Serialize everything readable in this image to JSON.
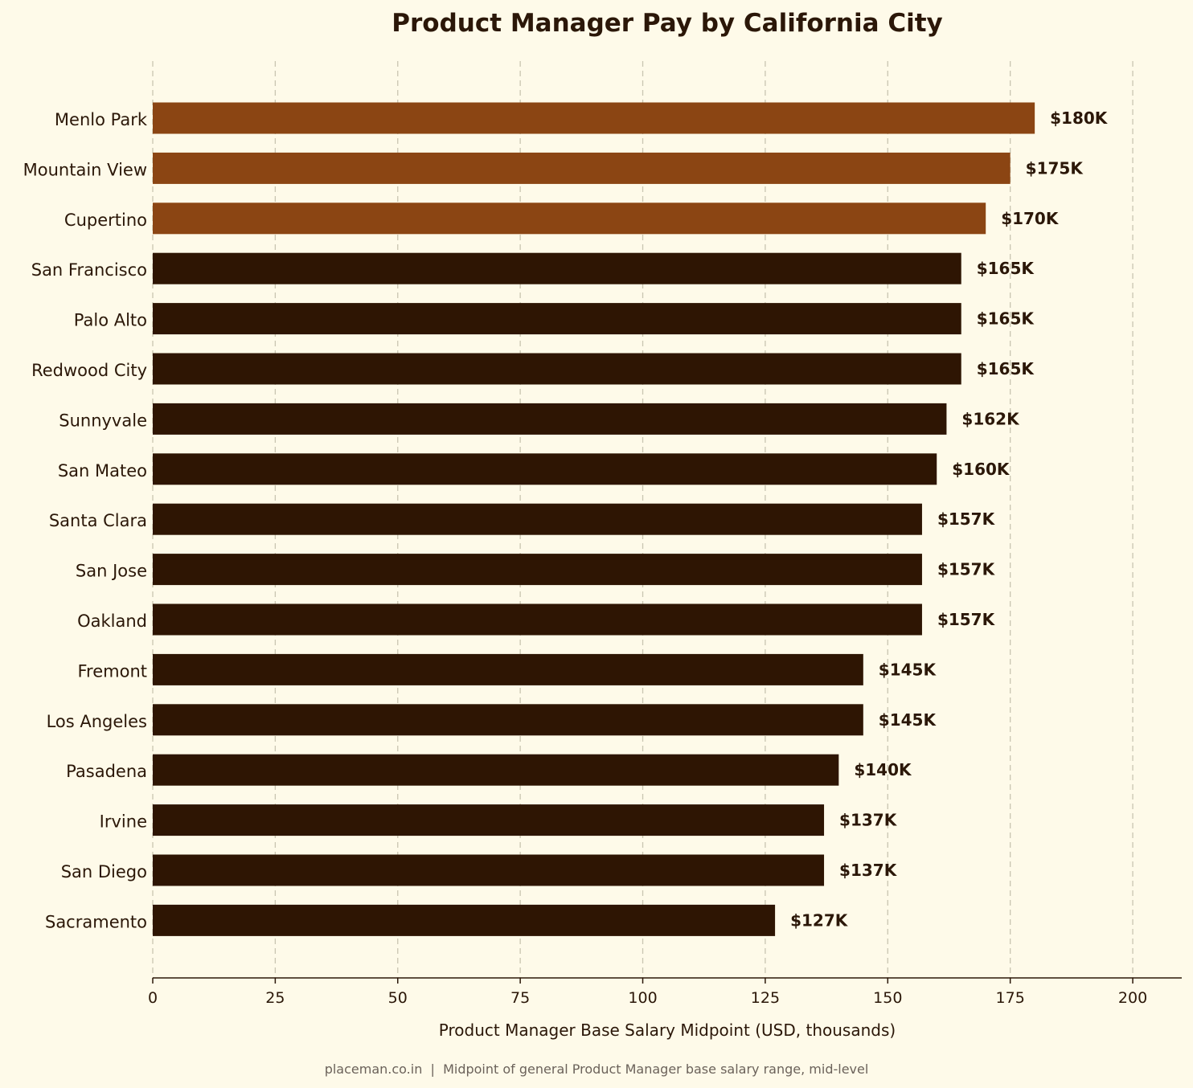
{
  "chart_data": {
    "type": "bar",
    "orientation": "horizontal",
    "title": "Product Manager Pay by California City",
    "xlabel": "Product Manager Base Salary Midpoint (USD, thousands)",
    "ylabel": "",
    "xlim": [
      0,
      210
    ],
    "xticks": [
      0,
      25,
      50,
      75,
      100,
      125,
      150,
      175,
      200
    ],
    "grid": "vertical dashed",
    "categories": [
      "Menlo Park",
      "Mountain View",
      "Cupertino",
      "San Francisco",
      "Palo Alto",
      "Redwood City",
      "Sunnyvale",
      "San Mateo",
      "Santa Clara",
      "San Jose",
      "Oakland",
      "Fremont",
      "Los Angeles",
      "Pasadena",
      "Irvine",
      "San Diego",
      "Sacramento"
    ],
    "values": [
      180,
      175,
      170,
      165,
      165,
      165,
      162,
      160,
      157,
      157,
      157,
      145,
      145,
      140,
      137,
      137,
      127
    ],
    "value_labels": [
      "$180K",
      "$175K",
      "$170K",
      "$165K",
      "$165K",
      "$165K",
      "$162K",
      "$160K",
      "$157K",
      "$157K",
      "$157K",
      "$145K",
      "$145K",
      "$140K",
      "$137K",
      "$137K",
      "$127K"
    ],
    "highlight_top_n": 3,
    "colors": {
      "highlight": "#8b4513",
      "default": "#2e1503",
      "background": "#fefae9",
      "text": "#2b1708"
    }
  },
  "footnote": "placeman.co.in  |  Midpoint of general Product Manager base salary range, mid-level"
}
